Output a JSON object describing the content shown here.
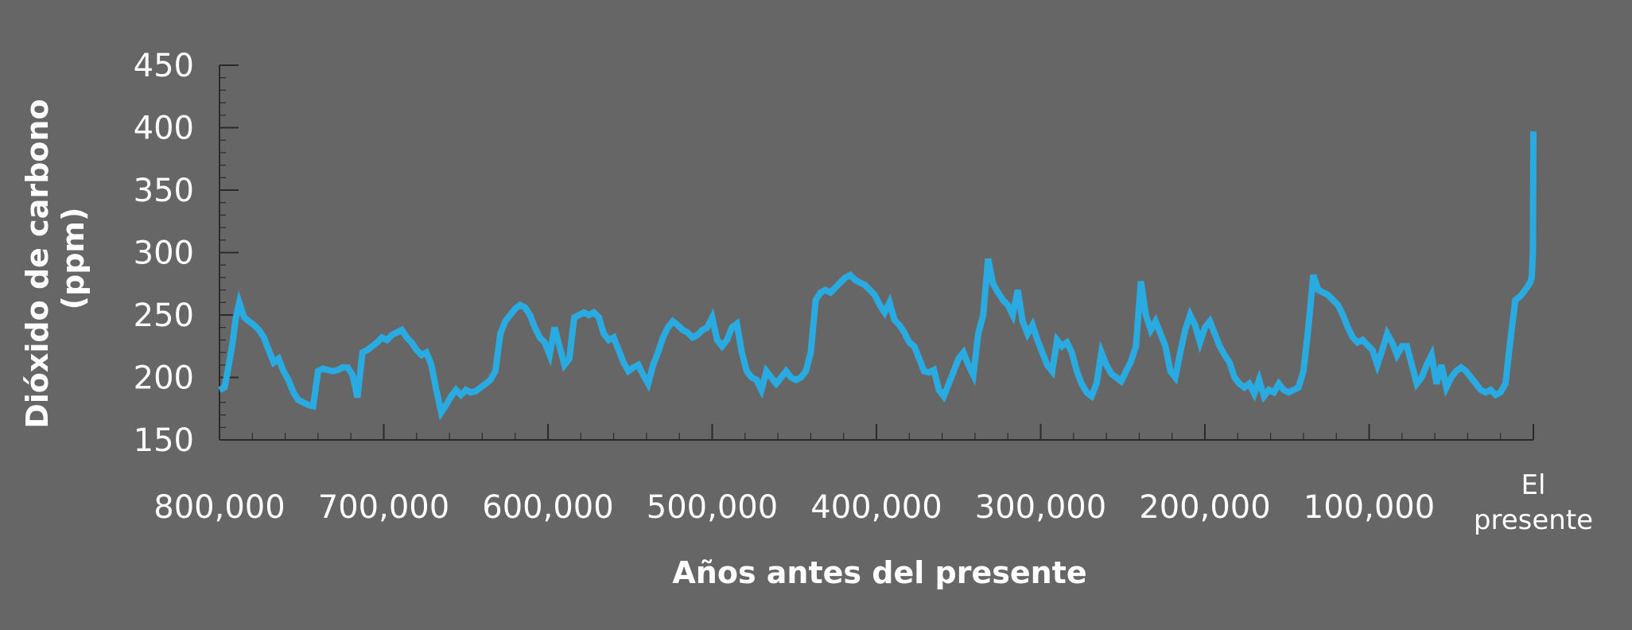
{
  "chart_data": {
    "type": "line",
    "title": "",
    "xlabel": "Años antes del presente",
    "ylabel_lines": [
      "Dióxido de carbono",
      "(ppm)"
    ],
    "ylim": [
      150,
      450
    ],
    "yticks": [
      150,
      200,
      250,
      300,
      350,
      400,
      450
    ],
    "xlim_years_before_present": [
      800000,
      0
    ],
    "xticks": [
      {
        "value": 800000,
        "label": "800,000"
      },
      {
        "value": 700000,
        "label": "700,000"
      },
      {
        "value": 600000,
        "label": "600,000"
      },
      {
        "value": 500000,
        "label": "500,000"
      },
      {
        "value": 400000,
        "label": "400,000"
      },
      {
        "value": 300000,
        "label": "300,000"
      },
      {
        "value": 200000,
        "label": "200,000"
      },
      {
        "value": 100000,
        "label": "100,000"
      },
      {
        "value": 0,
        "label_lines": [
          "El",
          "presente"
        ]
      }
    ],
    "series": [
      {
        "color": "#29abe2",
        "points": [
          [
            800000,
            190
          ],
          [
            797000,
            192
          ],
          [
            795000,
            205
          ],
          [
            792000,
            228
          ],
          [
            790000,
            248
          ],
          [
            788000,
            260
          ],
          [
            785000,
            248
          ],
          [
            782000,
            245
          ],
          [
            779000,
            242
          ],
          [
            776000,
            238
          ],
          [
            773000,
            232
          ],
          [
            770000,
            222
          ],
          [
            767000,
            212
          ],
          [
            764000,
            215
          ],
          [
            761000,
            205
          ],
          [
            758000,
            198
          ],
          [
            755000,
            188
          ],
          [
            752000,
            182
          ],
          [
            749000,
            180
          ],
          [
            746000,
            178
          ],
          [
            743000,
            177
          ],
          [
            740000,
            205
          ],
          [
            737000,
            207
          ],
          [
            734000,
            206
          ],
          [
            731000,
            205
          ],
          [
            728000,
            206
          ],
          [
            725000,
            208
          ],
          [
            722000,
            208
          ],
          [
            719000,
            202
          ],
          [
            716000,
            184
          ],
          [
            713000,
            220
          ],
          [
            710000,
            222
          ],
          [
            707000,
            225
          ],
          [
            704000,
            228
          ],
          [
            701000,
            232
          ],
          [
            698000,
            230
          ],
          [
            695000,
            234
          ],
          [
            692000,
            236
          ],
          [
            689000,
            238
          ],
          [
            686000,
            232
          ],
          [
            683000,
            228
          ],
          [
            680000,
            222
          ],
          [
            677000,
            218
          ],
          [
            674000,
            220
          ],
          [
            671000,
            210
          ],
          [
            668000,
            190
          ],
          [
            665000,
            172
          ],
          [
            662000,
            178
          ],
          [
            659000,
            185
          ],
          [
            656000,
            190
          ],
          [
            653000,
            186
          ],
          [
            650000,
            190
          ],
          [
            647000,
            188
          ],
          [
            644000,
            189
          ],
          [
            641000,
            192
          ],
          [
            638000,
            195
          ],
          [
            635000,
            198
          ],
          [
            632000,
            205
          ],
          [
            629000,
            235
          ],
          [
            626000,
            245
          ],
          [
            623000,
            250
          ],
          [
            620000,
            255
          ],
          [
            617000,
            258
          ],
          [
            614000,
            256
          ],
          [
            611000,
            250
          ],
          [
            608000,
            240
          ],
          [
            605000,
            232
          ],
          [
            602000,
            228
          ],
          [
            599000,
            218
          ],
          [
            596000,
            240
          ],
          [
            593000,
            225
          ],
          [
            590000,
            210
          ],
          [
            587000,
            215
          ],
          [
            584000,
            248
          ],
          [
            581000,
            250
          ],
          [
            578000,
            252
          ],
          [
            575000,
            250
          ],
          [
            572000,
            252
          ],
          [
            569000,
            248
          ],
          [
            566000,
            235
          ],
          [
            563000,
            230
          ],
          [
            560000,
            232
          ],
          [
            557000,
            222
          ],
          [
            554000,
            212
          ],
          [
            551000,
            205
          ],
          [
            548000,
            208
          ],
          [
            545000,
            210
          ],
          [
            542000,
            202
          ],
          [
            539000,
            195
          ],
          [
            536000,
            210
          ],
          [
            533000,
            220
          ],
          [
            530000,
            232
          ],
          [
            527000,
            240
          ],
          [
            524000,
            245
          ],
          [
            521000,
            242
          ],
          [
            518000,
            238
          ],
          [
            515000,
            236
          ],
          [
            512000,
            232
          ],
          [
            509000,
            234
          ],
          [
            506000,
            238
          ],
          [
            503000,
            240
          ],
          [
            500000,
            248
          ],
          [
            497000,
            230
          ],
          [
            494000,
            225
          ],
          [
            491000,
            230
          ],
          [
            488000,
            240
          ],
          [
            485000,
            243
          ],
          [
            482000,
            220
          ],
          [
            479000,
            205
          ],
          [
            476000,
            200
          ],
          [
            473000,
            198
          ],
          [
            470000,
            190
          ],
          [
            467000,
            205
          ],
          [
            464000,
            200
          ],
          [
            461000,
            195
          ],
          [
            458000,
            200
          ],
          [
            455000,
            205
          ],
          [
            452000,
            200
          ],
          [
            449000,
            198
          ],
          [
            446000,
            200
          ],
          [
            443000,
            205
          ],
          [
            440000,
            220
          ],
          [
            437000,
            262
          ],
          [
            434000,
            268
          ],
          [
            431000,
            270
          ],
          [
            428000,
            268
          ],
          [
            425000,
            272
          ],
          [
            422000,
            276
          ],
          [
            419000,
            280
          ],
          [
            416000,
            282
          ],
          [
            413000,
            278
          ],
          [
            410000,
            276
          ],
          [
            407000,
            274
          ],
          [
            404000,
            270
          ],
          [
            401000,
            266
          ],
          [
            398000,
            258
          ],
          [
            395000,
            252
          ],
          [
            392000,
            260
          ],
          [
            389000,
            246
          ],
          [
            386000,
            242
          ],
          [
            383000,
            236
          ],
          [
            380000,
            228
          ],
          [
            377000,
            225
          ],
          [
            374000,
            215
          ],
          [
            371000,
            205
          ],
          [
            368000,
            204
          ],
          [
            365000,
            206
          ],
          [
            362000,
            190
          ],
          [
            359000,
            185
          ],
          [
            356000,
            195
          ],
          [
            353000,
            205
          ],
          [
            350000,
            215
          ],
          [
            347000,
            220
          ],
          [
            344000,
            210
          ],
          [
            341000,
            202
          ],
          [
            338000,
            235
          ],
          [
            335000,
            250
          ],
          [
            332000,
            295
          ],
          [
            329000,
            275
          ],
          [
            326000,
            268
          ],
          [
            323000,
            262
          ],
          [
            320000,
            258
          ],
          [
            317000,
            250
          ],
          [
            314000,
            270
          ],
          [
            311000,
            245
          ],
          [
            308000,
            235
          ],
          [
            305000,
            242
          ],
          [
            302000,
            230
          ],
          [
            299000,
            220
          ],
          [
            296000,
            210
          ],
          [
            293000,
            205
          ],
          [
            290000,
            230
          ],
          [
            287000,
            225
          ],
          [
            284000,
            228
          ],
          [
            281000,
            220
          ],
          [
            278000,
            205
          ],
          [
            275000,
            195
          ],
          [
            272000,
            188
          ],
          [
            269000,
            185
          ],
          [
            266000,
            195
          ],
          [
            263000,
            220
          ],
          [
            260000,
            210
          ],
          [
            257000,
            203
          ],
          [
            254000,
            200
          ],
          [
            251000,
            197
          ],
          [
            248000,
            205
          ],
          [
            245000,
            213
          ],
          [
            242000,
            225
          ],
          [
            239000,
            277
          ],
          [
            236000,
            250
          ],
          [
            233000,
            238
          ],
          [
            230000,
            245
          ],
          [
            227000,
            235
          ],
          [
            224000,
            225
          ],
          [
            221000,
            205
          ],
          [
            218000,
            200
          ],
          [
            215000,
            220
          ],
          [
            212000,
            238
          ],
          [
            209000,
            250
          ],
          [
            206000,
            242
          ],
          [
            203000,
            228
          ],
          [
            200000,
            240
          ],
          [
            197000,
            245
          ],
          [
            194000,
            235
          ],
          [
            191000,
            225
          ],
          [
            188000,
            218
          ],
          [
            185000,
            212
          ],
          [
            182000,
            200
          ],
          [
            179000,
            195
          ],
          [
            176000,
            192
          ],
          [
            173000,
            195
          ],
          [
            170000,
            187
          ],
          [
            167000,
            198
          ],
          [
            164000,
            185
          ],
          [
            161000,
            190
          ],
          [
            158000,
            188
          ],
          [
            155000,
            195
          ],
          [
            152000,
            190
          ],
          [
            149000,
            188
          ],
          [
            146000,
            190
          ],
          [
            143000,
            192
          ],
          [
            140000,
            205
          ],
          [
            137000,
            240
          ],
          [
            134000,
            282
          ],
          [
            131000,
            270
          ],
          [
            128000,
            268
          ],
          [
            125000,
            266
          ],
          [
            122000,
            262
          ],
          [
            119000,
            258
          ],
          [
            116000,
            250
          ],
          [
            113000,
            240
          ],
          [
            110000,
            232
          ],
          [
            107000,
            228
          ],
          [
            104000,
            230
          ],
          [
            101000,
            226
          ],
          [
            98000,
            222
          ],
          [
            95000,
            210
          ],
          [
            92000,
            222
          ],
          [
            89000,
            235
          ],
          [
            86000,
            228
          ],
          [
            83000,
            218
          ],
          [
            80000,
            225
          ],
          [
            77000,
            225
          ],
          [
            74000,
            210
          ],
          [
            71000,
            195
          ],
          [
            68000,
            200
          ],
          [
            65000,
            210
          ],
          [
            62000,
            218
          ],
          [
            59000,
            195
          ],
          [
            56000,
            210
          ],
          [
            53000,
            192
          ],
          [
            50000,
            200
          ],
          [
            47000,
            205
          ],
          [
            44000,
            208
          ],
          [
            41000,
            205
          ],
          [
            38000,
            200
          ],
          [
            35000,
            195
          ],
          [
            32000,
            190
          ],
          [
            29000,
            188
          ],
          [
            26000,
            190
          ],
          [
            23000,
            186
          ],
          [
            20000,
            188
          ],
          [
            17000,
            195
          ],
          [
            14000,
            230
          ],
          [
            11000,
            262
          ],
          [
            8000,
            265
          ],
          [
            5000,
            270
          ],
          [
            2000,
            276
          ],
          [
            1000,
            280
          ],
          [
            300,
            300
          ],
          [
            0,
            397
          ]
        ]
      }
    ]
  }
}
